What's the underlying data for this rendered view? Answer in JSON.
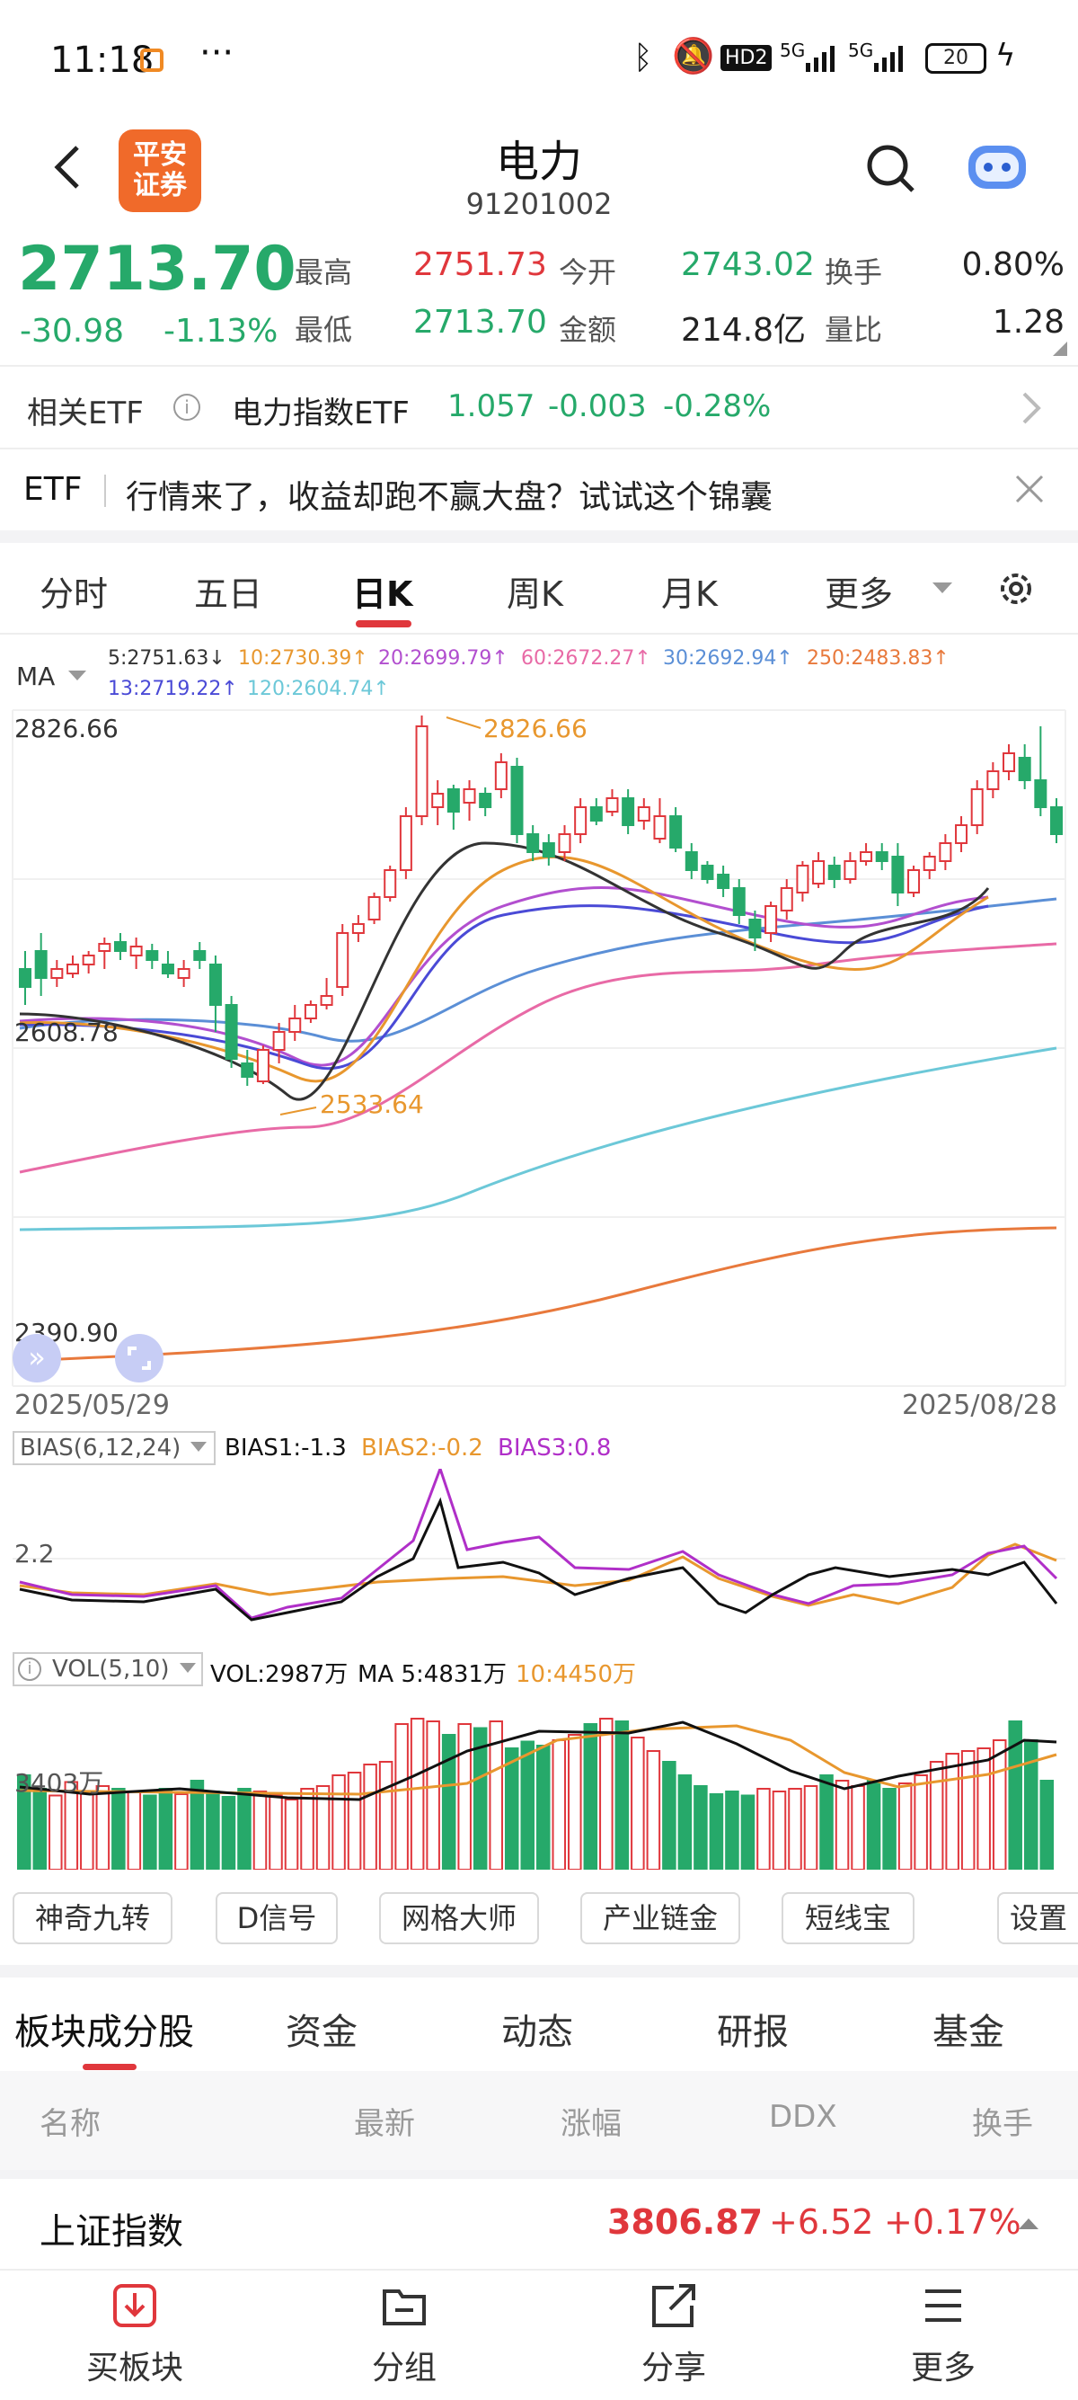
{
  "status_bar": {
    "time": "11:18",
    "dots": "···",
    "battery": "20",
    "signal1": "5G",
    "signal2": "5G",
    "hd": "HD2"
  },
  "header": {
    "logo_line1": "平安",
    "logo_line2": "证券",
    "title": "电力",
    "code": "91201002"
  },
  "quote": {
    "price": "2713.70",
    "change": "-30.98",
    "change_pct": "-1.13%",
    "labels": {
      "high": "最高",
      "low": "最低",
      "open": "今开",
      "amount": "金额",
      "turnover": "换手",
      "vol_ratio": "量比"
    },
    "high": "2751.73",
    "low": "2713.70",
    "open": "2743.02",
    "amount": "214.8亿",
    "turnover": "0.80%",
    "vol_ratio": "1.28"
  },
  "etf": {
    "label": "相关ETF",
    "name": "电力指数ETF",
    "price": "1.057",
    "change": "-0.003",
    "change_pct": "-0.28%"
  },
  "banner": {
    "tag": "ETF",
    "text": "行情来了，收益却跑不赢大盘？试试这个锦囊"
  },
  "chart_tabs": [
    "分时",
    "五日",
    "日K",
    "周K",
    "月K",
    "更多"
  ],
  "active_chart_tab": "日K",
  "ma_legend": {
    "label": "MA",
    "ma5": "5:2751.63↓",
    "ma10": "10:2730.39↑",
    "ma20": "20:2699.79↑",
    "ma60": "60:2672.27↑",
    "ma30": "30:2692.94↑",
    "ma250": "250:2483.83↑",
    "ma13": "13:2719.22↑",
    "ma120": "120:2604.74↑"
  },
  "colors": {
    "up": "#e0373c",
    "down": "#26a96a",
    "ma5": "#333333",
    "ma10": "#e8972e",
    "ma20": "#b24fcf",
    "ma60": "#e86aa6",
    "ma30": "#5b8fd6",
    "ma250": "#e8793c",
    "ma13": "#4a4ad6",
    "ma120": "#6cc8d8"
  },
  "kchart": {
    "y_top_label": "2826.66",
    "y_bottom_label": "2390.90",
    "y_mid_label": "2608.78",
    "peak_annot": "2826.66",
    "trough_annot": "2533.64",
    "date_start": "2025/05/29",
    "date_end": "2025/08/28"
  },
  "bias": {
    "label": "BIAS(6,12,24)",
    "b1": "BIAS1:-1.3",
    "b2": "BIAS2:-0.2",
    "b3": "BIAS3:0.8",
    "level": "2.2"
  },
  "vol": {
    "label": "VOL(5,10)",
    "vol": "VOL:2987万",
    "ma5": "MA 5:4831万",
    "ma10": "10:4450万",
    "level": "3403万"
  },
  "tools": [
    "神奇九转",
    "D信号",
    "网格大师",
    "产业链金",
    "短线宝",
    "设置"
  ],
  "panel_tabs": [
    "板块成分股",
    "资金",
    "动态",
    "研报",
    "基金"
  ],
  "table_headers": [
    "名称",
    "最新",
    "涨幅",
    "DDX",
    "换手"
  ],
  "index_row": {
    "name": "上证指数",
    "price": "3806.87",
    "change": "+6.52",
    "change_pct": "+0.17%"
  },
  "bottom_nav": [
    "买板块",
    "分组",
    "分享",
    "更多"
  ]
}
